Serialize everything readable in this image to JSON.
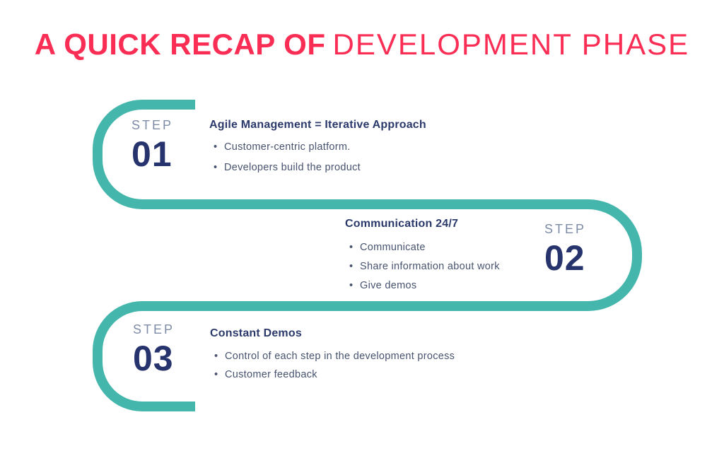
{
  "title": {
    "highlight": "A QUICK RECAP OF",
    "rest": "DEVELOPMENT PHASE"
  },
  "colors": {
    "accent_pink": "#FA2D55",
    "accent_teal": "#45B6AC",
    "navy": "#27336D",
    "heading_navy": "#2B3A6B",
    "step_label_gray": "#7E8CA7",
    "body_text": "#47536F",
    "background": "#FFFFFF"
  },
  "steps": [
    {
      "label": "STEP",
      "number": "01",
      "heading": "Agile Management = Iterative Approach",
      "bullets": [
        "Customer-centric platform.",
        "Developers build the product"
      ]
    },
    {
      "label": "STEP",
      "number": "02",
      "heading": "Communication 24/7",
      "bullets": [
        "Communicate",
        "Share information about work",
        "Give demos"
      ]
    },
    {
      "label": "STEP",
      "number": "03",
      "heading": "Constant Demos",
      "bullets": [
        "Control of each step in the development process",
        "Customer feedback"
      ]
    }
  ]
}
